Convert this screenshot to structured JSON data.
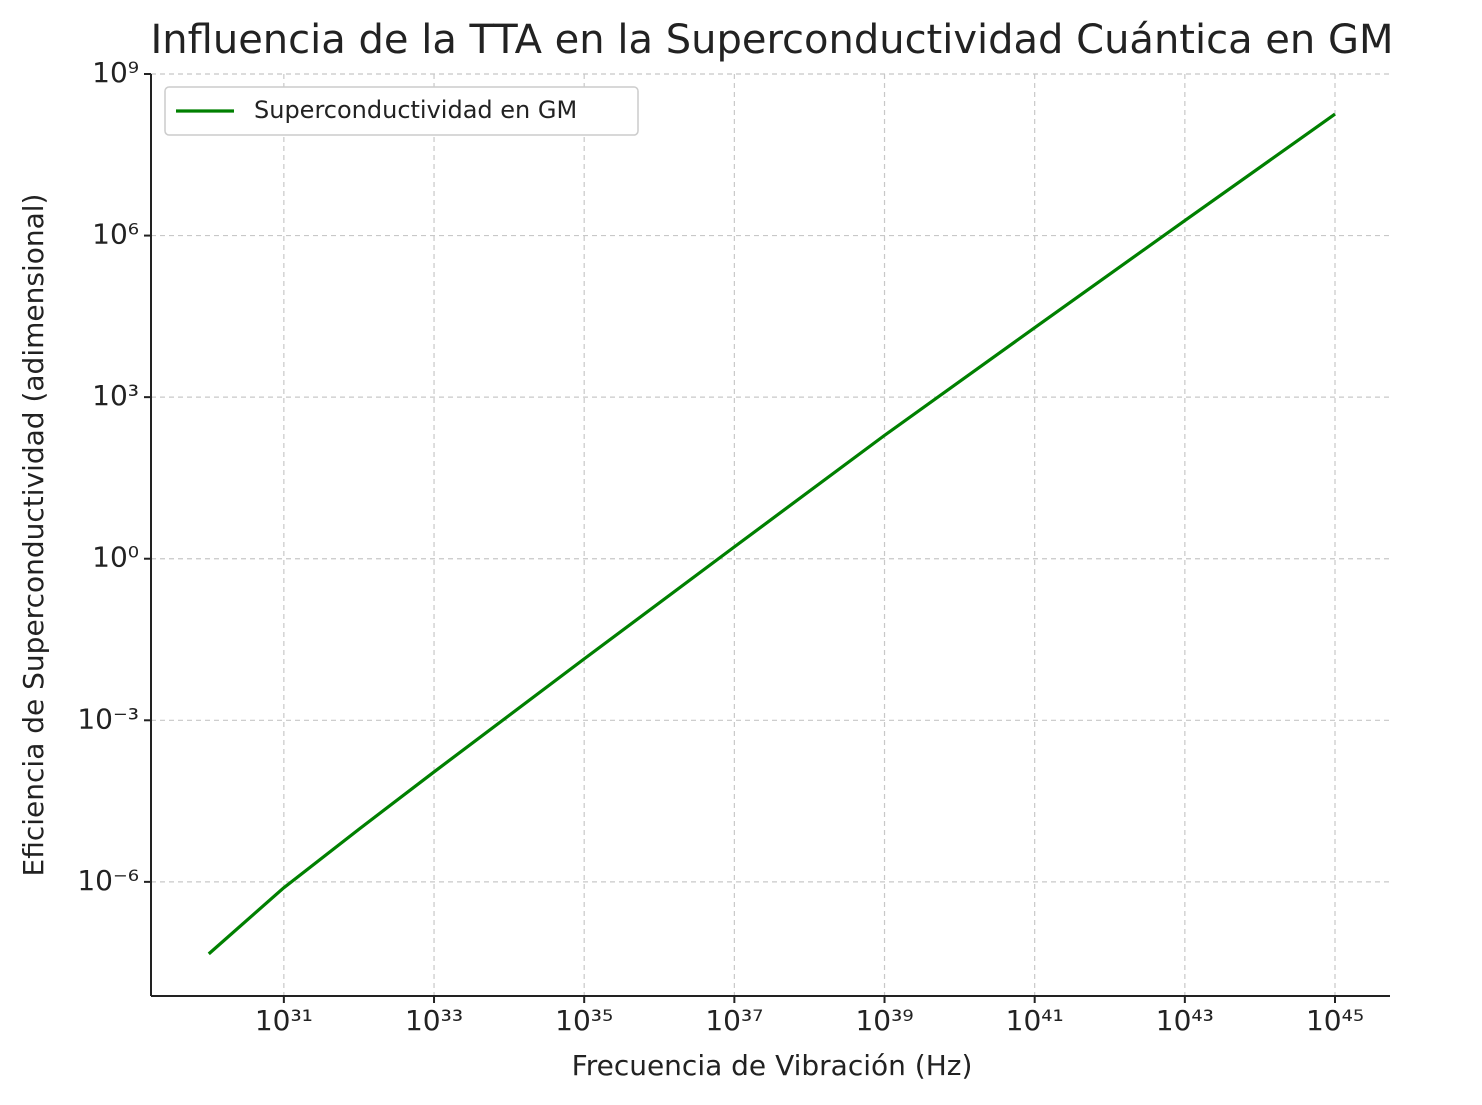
{
  "chart_data": {
    "type": "line",
    "title": "Influencia de la TTA en la Superconductividad Cuántica en GM",
    "x_label": "Frecuencia de Vibración (Hz)",
    "y_label": "Eficiencia de Superconductividad (adimensional)",
    "x": [
      1e+30,
      1e+31,
      1e+32,
      1e+33,
      1e+35,
      1e+37,
      1e+39,
      1e+41,
      1e+43,
      1e+45
    ],
    "series": [
      {
        "name": "Superconductividad en GM",
        "color": "#008000",
        "values": [
          4.6e-08,
          7.8e-07,
          9.5e-06,
          0.00011,
          0.0138,
          1.66,
          195,
          19500,
          1900000.0,
          180000000.0
        ]
      }
    ],
    "xscale": "log",
    "yscale": "log",
    "xlim": [
      1.7e+29,
      5.4e+45
    ],
    "ylim": [
      7.6e-09,
      1000000000.0
    ],
    "xticks": [
      {
        "value": 1e+31,
        "label": "10³¹"
      },
      {
        "value": 1e+33,
        "label": "10³³"
      },
      {
        "value": 1e+35,
        "label": "10³⁵"
      },
      {
        "value": 1e+37,
        "label": "10³⁷"
      },
      {
        "value": 1e+39,
        "label": "10³⁹"
      },
      {
        "value": 1e+41,
        "label": "10⁴¹"
      },
      {
        "value": 1e+43,
        "label": "10⁴³"
      },
      {
        "value": 1e+45,
        "label": "10⁴⁵"
      }
    ],
    "yticks": [
      {
        "value": 1e-06,
        "label": "10⁻⁶"
      },
      {
        "value": 0.001,
        "label": "10⁻³"
      },
      {
        "value": 1,
        "label": "10⁰"
      },
      {
        "value": 1000,
        "label": "10³"
      },
      {
        "value": 1000000,
        "label": "10⁶"
      },
      {
        "value": 1000000000,
        "label": "10⁹"
      }
    ],
    "grid": true,
    "legend": "upper left"
  }
}
